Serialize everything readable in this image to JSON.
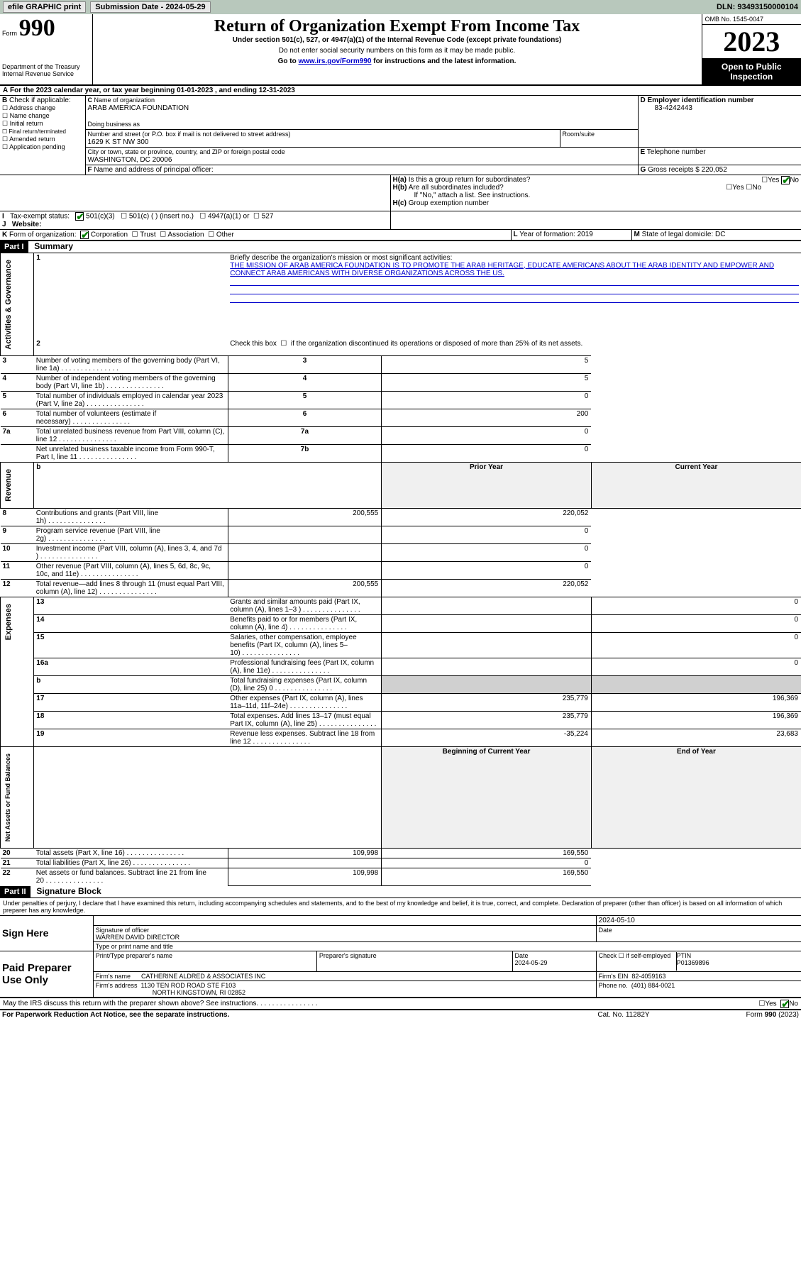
{
  "topbar": {
    "efile_btn": "efile GRAPHIC print",
    "submission_label": "Submission Date - 2024-05-29",
    "dln": "DLN: 93493150000104"
  },
  "header": {
    "form_prefix": "Form",
    "form_number": "990",
    "dept": "Department of the Treasury",
    "irs": "Internal Revenue Service",
    "title": "Return of Organization Exempt From Income Tax",
    "under_section": "Under section 501(c), 527, or 4947(a)(1) of the Internal Revenue Code (except private foundations)",
    "ssn_note": "Do not enter social security numbers on this form as it may be made public.",
    "goto_prefix": "Go to ",
    "goto_link": "www.irs.gov/Form990",
    "goto_suffix": " for instructions and the latest information.",
    "omb": "OMB No. 1545-0047",
    "year": "2023",
    "open_public": "Open to Public Inspection"
  },
  "A": {
    "text": "For the 2023 calendar year, or tax year beginning 01-01-2023    , and ending 12-31-2023"
  },
  "B": {
    "label": "Check if applicable:",
    "items": [
      "Address change",
      "Name change",
      "Initial return",
      "Final return/terminated",
      "Amended return",
      "Application pending"
    ]
  },
  "C": {
    "name_label": "Name of organization",
    "org_name": "ARAB AMERICA FOUNDATION",
    "dba_label": "Doing business as",
    "street_label": "Number and street (or P.O. box if mail is not delivered to street address)",
    "street": "1629 K ST NW 300",
    "room_label": "Room/suite",
    "city_label": "City or town, state or province, country, and ZIP or foreign postal code",
    "city": "WASHINGTON, DC  20006"
  },
  "D": {
    "label": "Employer identification number",
    "value": "83-4242443"
  },
  "E": {
    "label": "Telephone number"
  },
  "G": {
    "label": "Gross receipts $",
    "value": "220,052"
  },
  "F": {
    "label": "Name and address of principal officer:"
  },
  "H": {
    "a": "Is this a group return for subordinates?",
    "b": "Are all subordinates included?",
    "b_note": "If \"No,\" attach a list. See instructions.",
    "c": "Group exemption number",
    "yes": "Yes",
    "no": "No"
  },
  "I": {
    "label": "Tax-exempt status:",
    "opt1": "501(c)(3)",
    "opt2": "501(c) (    ) (insert no.)",
    "opt3": "4947(a)(1) or",
    "opt4": "527"
  },
  "J": {
    "label": "Website:"
  },
  "K": {
    "label": "Form of organization:",
    "opts": [
      "Corporation",
      "Trust",
      "Association",
      "Other"
    ]
  },
  "L": {
    "label": "Year of formation:",
    "value": "2019"
  },
  "M": {
    "label": "State of legal domicile:",
    "value": "DC"
  },
  "part1": {
    "header": "Part I",
    "title": "Summary"
  },
  "summary": {
    "line1_label": "Briefly describe the organization's mission or most significant activities:",
    "mission": "THE MISSION OF ARAB AMERICA FOUNDATION IS TO PROMOTE THE ARAB HERITAGE, EDUCATE AMERICANS ABOUT THE ARAB IDENTITY AND EMPOWER AND CONNECT ARAB AMERICANS WITH DIVERSE ORGANIZATIONS ACROSS THE US.",
    "line2": "Check this box       if the organization discontinued its operations or disposed of more than 25% of its net assets.",
    "labels": {
      "activities": "Activities & Governance",
      "revenue": "Revenue",
      "expenses": "Expenses",
      "net": "Net Assets or Fund Balances"
    }
  },
  "rows_gov": [
    {
      "n": "3",
      "t": "Number of voting members of the governing body (Part VI, line 1a)",
      "k": "3",
      "v": "5"
    },
    {
      "n": "4",
      "t": "Number of independent voting members of the governing body (Part VI, line 1b)",
      "k": "4",
      "v": "5"
    },
    {
      "n": "5",
      "t": "Total number of individuals employed in calendar year 2023 (Part V, line 2a)",
      "k": "5",
      "v": "0"
    },
    {
      "n": "6",
      "t": "Total number of volunteers (estimate if necessary)",
      "k": "6",
      "v": "200"
    },
    {
      "n": "7a",
      "t": "Total unrelated business revenue from Part VIII, column (C), line 12",
      "k": "7a",
      "v": "0"
    },
    {
      "n": "",
      "t": "Net unrelated business taxable income from Form 990-T, Part I, line 11",
      "k": "7b",
      "v": "0"
    }
  ],
  "year_headers": {
    "prior": "Prior Year",
    "current": "Current Year"
  },
  "rows_rev": [
    {
      "n": "8",
      "t": "Contributions and grants (Part VIII, line 1h)",
      "p": "200,555",
      "c": "220,052"
    },
    {
      "n": "9",
      "t": "Program service revenue (Part VIII, line 2g)",
      "p": "",
      "c": "0"
    },
    {
      "n": "10",
      "t": "Investment income (Part VIII, column (A), lines 3, 4, and 7d )",
      "p": "",
      "c": "0"
    },
    {
      "n": "11",
      "t": "Other revenue (Part VIII, column (A), lines 5, 6d, 8c, 9c, 10c, and 11e)",
      "p": "",
      "c": "0"
    },
    {
      "n": "12",
      "t": "Total revenue—add lines 8 through 11 (must equal Part VIII, column (A), line 12)",
      "p": "200,555",
      "c": "220,052"
    }
  ],
  "rows_exp": [
    {
      "n": "13",
      "t": "Grants and similar amounts paid (Part IX, column (A), lines 1–3 )",
      "p": "",
      "c": "0"
    },
    {
      "n": "14",
      "t": "Benefits paid to or for members (Part IX, column (A), line 4)",
      "p": "",
      "c": "0"
    },
    {
      "n": "15",
      "t": "Salaries, other compensation, employee benefits (Part IX, column (A), lines 5–10)",
      "p": "",
      "c": "0"
    },
    {
      "n": "16a",
      "t": "Professional fundraising fees (Part IX, column (A), line 11e)",
      "p": "",
      "c": "0"
    },
    {
      "n": "b",
      "t": "Total fundraising expenses (Part IX, column (D), line 25) 0",
      "p": "GREY",
      "c": "GREY"
    },
    {
      "n": "17",
      "t": "Other expenses (Part IX, column (A), lines 11a–11d, 11f–24e)",
      "p": "235,779",
      "c": "196,369"
    },
    {
      "n": "18",
      "t": "Total expenses. Add lines 13–17 (must equal Part IX, column (A), line 25)",
      "p": "235,779",
      "c": "196,369"
    },
    {
      "n": "19",
      "t": "Revenue less expenses. Subtract line 18 from line 12",
      "p": "-35,224",
      "c": "23,683"
    }
  ],
  "net_headers": {
    "begin": "Beginning of Current Year",
    "end": "End of Year"
  },
  "rows_net": [
    {
      "n": "20",
      "t": "Total assets (Part X, line 16)",
      "p": "109,998",
      "c": "169,550"
    },
    {
      "n": "21",
      "t": "Total liabilities (Part X, line 26)",
      "p": "",
      "c": "0"
    },
    {
      "n": "22",
      "t": "Net assets or fund balances. Subtract line 21 from line 20",
      "p": "109,998",
      "c": "169,550"
    }
  ],
  "part2": {
    "header": "Part II",
    "title": "Signature Block"
  },
  "sig": {
    "perjury": "Under penalties of perjury, I declare that I have examined this return, including accompanying schedules and statements, and to the best of my knowledge and belief, it is true, correct, and complete. Declaration of preparer (other than officer) is based on all information of which preparer has any knowledge.",
    "sign_here": "Sign Here",
    "date_top": "2024-05-10",
    "sig_officer": "Signature of officer",
    "officer_name": "WARREN DAVID  DIRECTOR",
    "type_name": "Type or print name and title",
    "date_label": "Date",
    "paid": "Paid Preparer Use Only",
    "print_name": "Print/Type preparer's name",
    "prep_sig": "Preparer's signature",
    "prep_date": "2024-05-29",
    "check_if": "Check        if self-employed",
    "ptin_label": "PTIN",
    "ptin": "P01369896",
    "firm_name_label": "Firm's name",
    "firm_name": "CATHERINE ALDRED & ASSOCIATES INC",
    "firm_ein_label": "Firm's EIN",
    "firm_ein": "82-4059163",
    "firm_addr_label": "Firm's address",
    "firm_addr1": "1130 TEN ROD ROAD STE F103",
    "firm_addr2": "NORTH KINGSTOWN, RI  02852",
    "phone_label": "Phone no.",
    "phone": "(401) 884-0021",
    "discuss": "May the IRS discuss this return with the preparer shown above? See instructions."
  },
  "footer": {
    "paperwork": "For Paperwork Reduction Act Notice, see the separate instructions.",
    "cat": "Cat. No. 11282Y",
    "form": "Form 990 (2023)"
  }
}
